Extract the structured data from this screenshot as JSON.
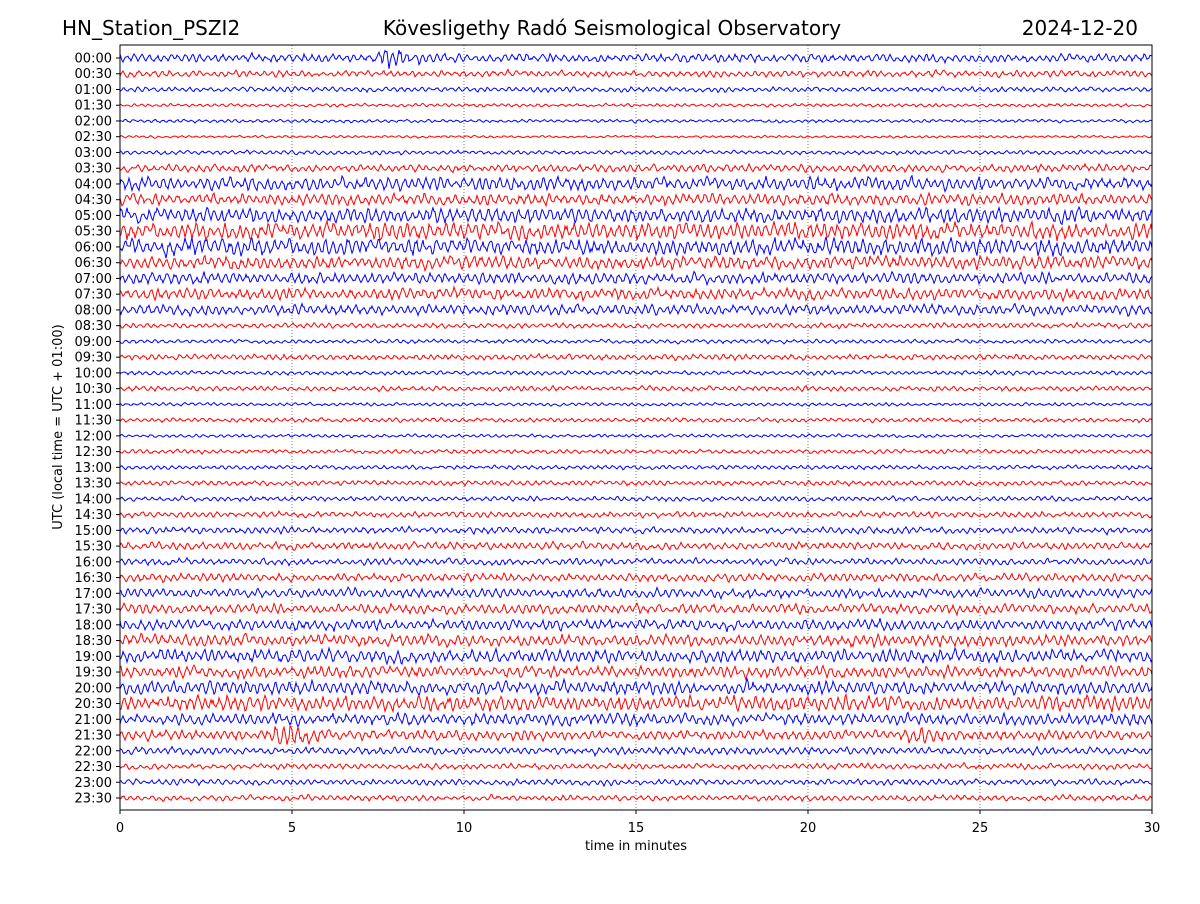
{
  "header": {
    "station": "HN_Station_PSZI2",
    "observatory": "Kövesligethy Radó Seismological Observatory",
    "date": "2024-12-20"
  },
  "chart_data": {
    "type": "line",
    "title": "Kövesligethy Radó Seismological Observatory",
    "xlabel": "time in minutes",
    "ylabel": "UTC (local time = UTC + 01:00)",
    "xlim": [
      0,
      30
    ],
    "xticks": [
      "0",
      "5",
      "10",
      "15",
      "20",
      "25",
      "30"
    ],
    "grid": "vertical dotted",
    "colors": [
      "#0000ff",
      "#ff0000"
    ],
    "rows": [
      "00:00",
      "00:30",
      "01:00",
      "01:30",
      "02:00",
      "02:30",
      "03:00",
      "03:30",
      "04:00",
      "04:30",
      "05:00",
      "05:30",
      "06:00",
      "06:30",
      "07:00",
      "07:30",
      "08:00",
      "08:30",
      "09:00",
      "09:30",
      "10:00",
      "10:30",
      "11:00",
      "11:30",
      "12:00",
      "12:30",
      "13:00",
      "13:30",
      "14:00",
      "14:30",
      "15:00",
      "15:30",
      "16:00",
      "16:30",
      "17:00",
      "17:30",
      "18:00",
      "18:30",
      "19:00",
      "19:30",
      "20:00",
      "20:30",
      "21:00",
      "21:30",
      "22:00",
      "22:30",
      "23:00",
      "23:30"
    ],
    "relative_amplitude": [
      0.5,
      0.4,
      0.3,
      0.2,
      0.2,
      0.15,
      0.25,
      0.45,
      0.8,
      0.7,
      0.9,
      1.0,
      1.0,
      0.8,
      0.7,
      0.7,
      0.6,
      0.3,
      0.25,
      0.35,
      0.25,
      0.3,
      0.2,
      0.25,
      0.2,
      0.25,
      0.25,
      0.3,
      0.3,
      0.35,
      0.4,
      0.45,
      0.4,
      0.5,
      0.55,
      0.6,
      0.65,
      0.7,
      0.8,
      0.7,
      0.8,
      0.9,
      0.7,
      0.6,
      0.45,
      0.35,
      0.35,
      0.35
    ],
    "events": [
      {
        "row": "21:30",
        "minute": 4.8,
        "relative_amplitude": 1.6
      },
      {
        "row": "21:30",
        "minute": 23.0,
        "relative_amplitude": 0.9
      },
      {
        "row": "00:00",
        "minute": 7.8,
        "relative_amplitude": 1.3
      }
    ]
  }
}
